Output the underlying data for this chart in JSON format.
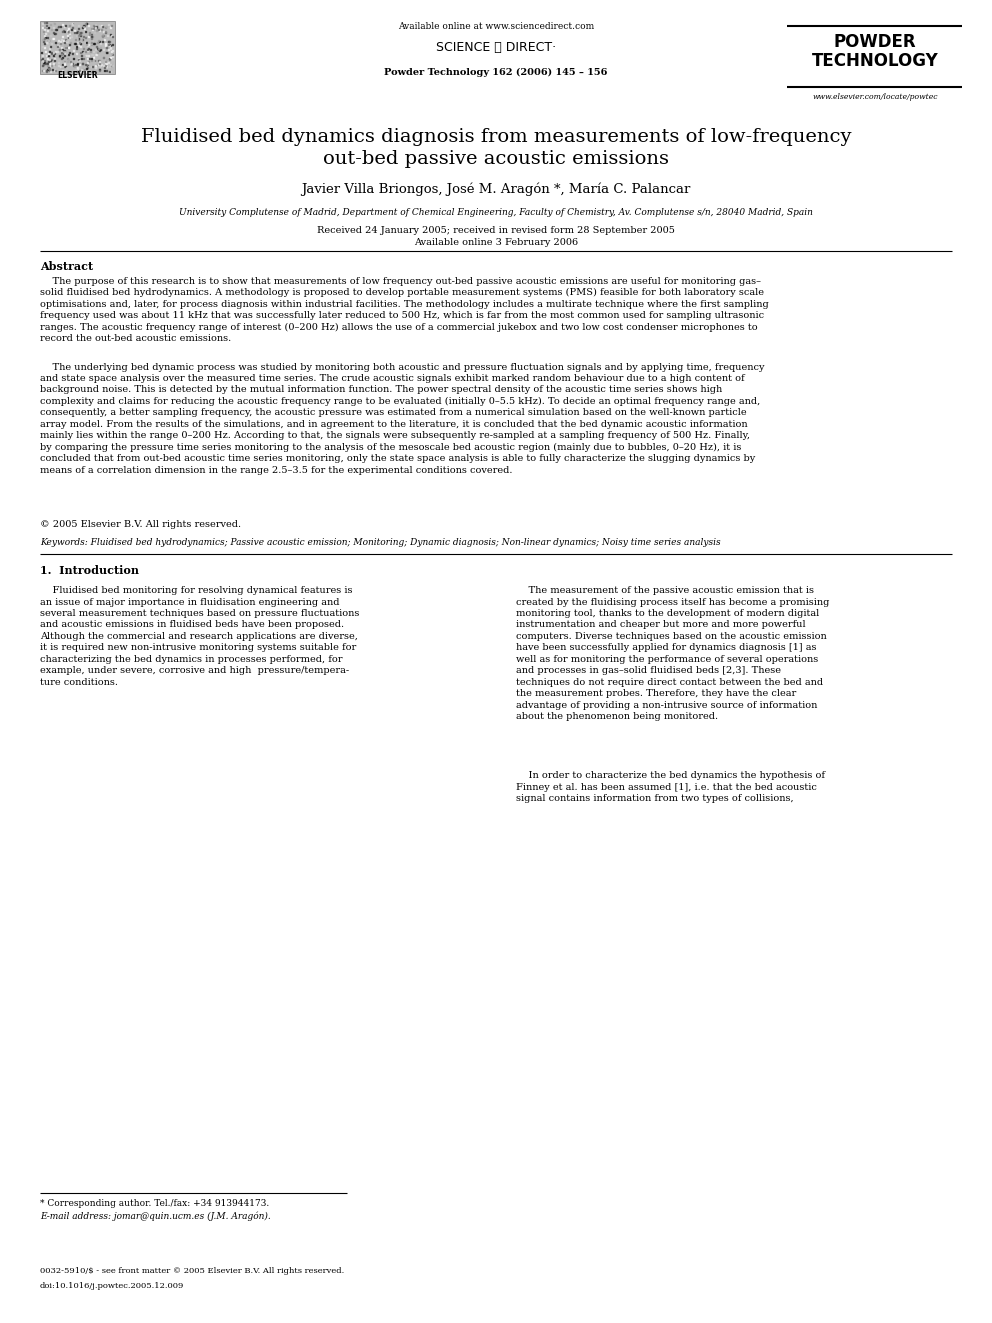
{
  "bg_color": "#ffffff",
  "page_width": 9.92,
  "page_height": 13.23,
  "available_online": "Available online at www.sciencedirect.com",
  "journal_line": "Powder Technology 162 (2006) 145 – 156",
  "sciencedirect_text": "SCIENCE ⓓ DIRECT·",
  "powder_technology": "POWDER\nTECHNOLOGY",
  "elsevier_text": "ELSEVIER",
  "website": "www.elsevier.com/locate/powtec",
  "title": "Fluidised bed dynamics diagnosis from measurements of low-frequency\nout-bed passive acoustic emissions",
  "authors": "Javier Villa Briongos, José M. Aragón *, María C. Palancar",
  "affiliation": "University Complutense of Madrid, Department of Chemical Engineering, Faculty of Chemistry, Av. Complutense s/n, 28040 Madrid, Spain",
  "received": "Received 24 January 2005; received in revised form 28 September 2005",
  "available": "Available online 3 February 2006",
  "abstract_heading": "Abstract",
  "abstract_p1": "    The purpose of this research is to show that measurements of low frequency out-bed passive acoustic emissions are useful for monitoring gas–\nsolid fluidised bed hydrodynamics. A methodology is proposed to develop portable measurement systems (PMS) feasible for both laboratory scale\noptimisations and, later, for process diagnosis within industrial facilities. The methodology includes a multirate technique where the first sampling\nfrequency used was about 11 kHz that was successfully later reduced to 500 Hz, which is far from the most common used for sampling ultrasonic\nranges. The acoustic frequency range of interest (0–200 Hz) allows the use of a commercial jukebox and two low cost condenser microphones to\nrecord the out-bed acoustic emissions.",
  "abstract_p2": "    The underlying bed dynamic process was studied by monitoring both acoustic and pressure fluctuation signals and by applying time, frequency\nand state space analysis over the measured time series. The crude acoustic signals exhibit marked random behaviour due to a high content of\nbackground noise. This is detected by the mutual information function. The power spectral density of the acoustic time series shows high\ncomplexity and claims for reducing the acoustic frequency range to be evaluated (initially 0–5.5 kHz). To decide an optimal frequency range and,\nconsequently, a better sampling frequency, the acoustic pressure was estimated from a numerical simulation based on the well-known particle\narray model. From the results of the simulations, and in agreement to the literature, it is concluded that the bed dynamic acoustic information\nmainly lies within the range 0–200 Hz. According to that, the signals were subsequently re-sampled at a sampling frequency of 500 Hz. Finally,\nby comparing the pressure time series monitoring to the analysis of the mesoscale bed acoustic region (mainly due to bubbles, 0–20 Hz), it is\nconcluded that from out-bed acoustic time series monitoring, only the state space analysis is able to fully characterize the slugging dynamics by\nmeans of a correlation dimension in the range 2.5–3.5 for the experimental conditions covered.",
  "copyright": "© 2005 Elsevier B.V. All rights reserved.",
  "keywords": "Keywords: Fluidised bed hydrodynamics; Passive acoustic emission; Monitoring; Dynamic diagnosis; Non-linear dynamics; Noisy time series analysis",
  "section1_heading": "1.  Introduction",
  "col1_p1": "    Fluidised bed monitoring for resolving dynamical features is\nan issue of major importance in fluidisation engineering and\nseveral measurement techniques based on pressure fluctuations\nand acoustic emissions in fluidised beds have been proposed.\nAlthough the commercial and research applications are diverse,\nit is required new non-intrusive monitoring systems suitable for\ncharacterizing the bed dynamics in processes performed, for\nexample, under severe, corrosive and high  pressure/tempera-\nture conditions.",
  "col2_p1": "    The measurement of the passive acoustic emission that is\ncreated by the fluidising process itself has become a promising\nmonitoring tool, thanks to the development of modern digital\ninstrumentation and cheaper but more and more powerful\ncomputers. Diverse techniques based on the acoustic emission\nhave been successfully applied for dynamics diagnosis [1] as\nwell as for monitoring the performance of several operations\nand processes in gas–solid fluidised beds [2,3]. These\ntechniques do not require direct contact between the bed and\nthe measurement probes. Therefore, they have the clear\nadvantage of providing a non-intrusive source of information\nabout the phenomenon being monitored.",
  "col2_p2": "    In order to characterize the bed dynamics the hypothesis of\nFinney et al. has been assumed [1], i.e. that the bed acoustic\nsignal contains information from two types of collisions,",
  "footnote_star": "* Corresponding author. Tel./fax: +34 913944173.",
  "footnote_email": "E-mail address: jomar@quin.ucm.es (J.M. Aragón).",
  "footer_issn": "0032-5910/$ - see front matter © 2005 Elsevier B.V. All rights reserved.",
  "footer_doi": "doi:10.1016/j.powtec.2005.12.009"
}
